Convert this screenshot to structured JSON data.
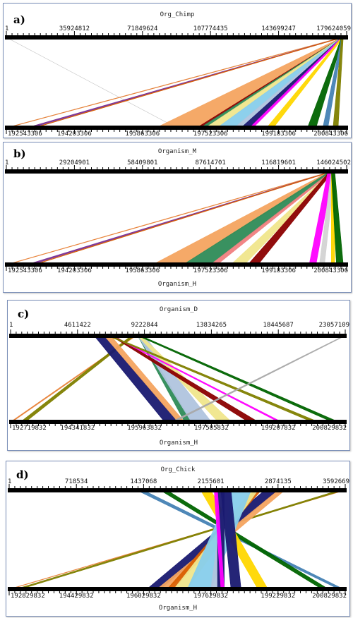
{
  "panels": [
    {
      "id": "a",
      "letter": "a)",
      "top_organism": "Org_Chimp",
      "bottom_organism": "",
      "top_ticks": [
        "1",
        "35924812",
        "71849624",
        "107774435",
        "143699247",
        "179624059"
      ],
      "bottom_ticks": [
        "192543306",
        "194203306",
        "195863306",
        "197523306",
        "199183306",
        "200843306"
      ],
      "links": [
        {
          "color": "#c0c0c0",
          "t": [
            0.0,
            0.0
          ],
          "b": [
            0.5,
            0.5
          ]
        },
        {
          "color": "#c0c0c0",
          "t": [
            0.985,
            0.985
          ],
          "b": [
            0.0,
            0.0
          ]
        },
        {
          "color": "#e8833a",
          "t": [
            0.985,
            0.99
          ],
          "b": [
            0.0,
            0.005
          ]
        },
        {
          "color": "#7b3294",
          "t": [
            0.985,
            0.99
          ],
          "b": [
            0.06,
            0.075
          ]
        },
        {
          "color": "#d95f02",
          "t": [
            0.985,
            0.99
          ],
          "b": [
            0.08,
            0.085
          ]
        },
        {
          "color": "#f4a460",
          "t": [
            0.985,
            0.995
          ],
          "b": [
            0.44,
            0.56
          ]
        },
        {
          "color": "#8b0000",
          "t": [
            0.985,
            0.99
          ],
          "b": [
            0.56,
            0.57
          ]
        },
        {
          "color": "#2e8b57",
          "t": [
            0.985,
            0.99
          ],
          "b": [
            0.57,
            0.585
          ]
        },
        {
          "color": "#f0e68c",
          "t": [
            0.985,
            0.99
          ],
          "b": [
            0.585,
            0.62
          ]
        },
        {
          "color": "#87ceeb",
          "t": [
            0.985,
            0.99
          ],
          "b": [
            0.62,
            0.67
          ]
        },
        {
          "color": "#b0c4de",
          "t": [
            0.985,
            0.99
          ],
          "b": [
            0.67,
            0.69
          ]
        },
        {
          "color": "#191970",
          "t": [
            0.985,
            0.99
          ],
          "b": [
            0.69,
            0.715
          ]
        },
        {
          "color": "#ff00ff",
          "t": [
            0.985,
            0.99
          ],
          "b": [
            0.715,
            0.725
          ]
        },
        {
          "color": "#ffd700",
          "t": [
            0.985,
            0.99
          ],
          "b": [
            0.765,
            0.785
          ]
        },
        {
          "color": "#006400",
          "t": [
            0.985,
            0.99
          ],
          "b": [
            0.885,
            0.91
          ]
        },
        {
          "color": "#4682b4",
          "t": [
            0.985,
            0.99
          ],
          "b": [
            0.93,
            0.945
          ]
        },
        {
          "color": "#808000",
          "t": [
            0.985,
            0.99
          ],
          "b": [
            0.96,
            0.975
          ]
        }
      ]
    },
    {
      "id": "b",
      "letter": "b)",
      "top_organism": "Organism_M",
      "bottom_organism": "Organism_H",
      "top_ticks": [
        "1",
        "29204901",
        "58409801",
        "87614701",
        "116819601",
        "146024502"
      ],
      "bottom_ticks": [
        "192543306",
        "194203306",
        "195863306",
        "197523306",
        "199183306",
        "200843306"
      ],
      "links": [
        {
          "color": "#e8833a",
          "t": [
            0.955,
            0.96
          ],
          "b": [
            0.0,
            0.005
          ]
        },
        {
          "color": "#7b3294",
          "t": [
            0.955,
            0.96
          ],
          "b": [
            0.06,
            0.075
          ]
        },
        {
          "color": "#d95f02",
          "t": [
            0.955,
            0.96
          ],
          "b": [
            0.08,
            0.085
          ]
        },
        {
          "color": "#f4a460",
          "t": [
            0.95,
            0.96
          ],
          "b": [
            0.43,
            0.52
          ]
        },
        {
          "color": "#2e8b57",
          "t": [
            0.95,
            0.96
          ],
          "b": [
            0.52,
            0.6
          ]
        },
        {
          "color": "#f08080",
          "t": [
            0.955,
            0.96
          ],
          "b": [
            0.6,
            0.62
          ]
        },
        {
          "color": "#f0e68c",
          "t": [
            0.955,
            0.96
          ],
          "b": [
            0.66,
            0.7
          ]
        },
        {
          "color": "#8b0000",
          "t": [
            0.95,
            0.96
          ],
          "b": [
            0.71,
            0.74
          ]
        },
        {
          "color": "#ff00ff",
          "t": [
            0.945,
            0.96
          ],
          "b": [
            0.89,
            0.91
          ]
        },
        {
          "color": "#d3d3d3",
          "t": [
            0.955,
            0.965
          ],
          "b": [
            0.92,
            0.935
          ]
        },
        {
          "color": "#ffd700",
          "t": [
            0.955,
            0.965
          ],
          "b": [
            0.955,
            0.965
          ]
        },
        {
          "color": "#006400",
          "t": [
            0.955,
            0.965
          ],
          "b": [
            0.97,
            0.99
          ]
        }
      ]
    },
    {
      "id": "c",
      "letter": "c)",
      "top_organism": "Organism_D",
      "bottom_organism": "Organism_H",
      "top_ticks": [
        "1",
        "4611422",
        "9222844",
        "13834265",
        "18445687",
        "23057109"
      ],
      "bottom_ticks": [
        "192719832",
        "194341832",
        "195963832",
        "197585832",
        "199207832",
        "200829832"
      ],
      "links": [
        {
          "color": "#e8833a",
          "t": [
            0.37,
            0.375
          ],
          "b": [
            0.0,
            0.005
          ]
        },
        {
          "color": "#808000",
          "t": [
            0.36,
            0.37
          ],
          "b": [
            0.03,
            0.045
          ]
        },
        {
          "color": "#191970",
          "t": [
            0.25,
            0.28
          ],
          "b": [
            0.46,
            0.5
          ]
        },
        {
          "color": "#f4a460",
          "t": [
            0.28,
            0.3
          ],
          "b": [
            0.5,
            0.52
          ]
        },
        {
          "color": "#2e8b57",
          "t": [
            0.38,
            0.39
          ],
          "b": [
            0.52,
            0.54
          ]
        },
        {
          "color": "#b0c4de",
          "t": [
            0.38,
            0.4
          ],
          "b": [
            0.54,
            0.6
          ]
        },
        {
          "color": "#f0e68c",
          "t": [
            0.38,
            0.39
          ],
          "b": [
            0.62,
            0.66
          ]
        },
        {
          "color": "#8b0000",
          "t": [
            0.3,
            0.31
          ],
          "b": [
            0.71,
            0.74
          ]
        },
        {
          "color": "#ff00ff",
          "t": [
            0.3,
            0.305
          ],
          "b": [
            0.8,
            0.81
          ]
        },
        {
          "color": "#808000",
          "t": [
            0.29,
            0.3
          ],
          "b": [
            0.9,
            0.92
          ]
        },
        {
          "color": "#006400",
          "t": [
            0.38,
            0.39
          ],
          "b": [
            0.96,
            0.98
          ]
        },
        {
          "color": "#a9a9a9",
          "t": [
            0.995,
            1.0
          ],
          "b": [
            0.48,
            0.49
          ]
        }
      ]
    },
    {
      "id": "d",
      "letter": "d)",
      "top_organism": "Org_Chick",
      "bottom_organism": "Organism_H",
      "top_ticks": [
        "1",
        "718534",
        "1437068",
        "2155601",
        "2874135",
        "3592669"
      ],
      "bottom_ticks": [
        "192829832",
        "194429832",
        "196029832",
        "197629832",
        "199229832",
        "200829832"
      ],
      "links": [
        {
          "color": "#e8833a",
          "t": [
            0.995,
            1.0
          ],
          "b": [
            0.0,
            0.005
          ]
        },
        {
          "color": "#808000",
          "t": [
            0.98,
            0.995
          ],
          "b": [
            0.02,
            0.035
          ]
        },
        {
          "color": "#4682b4",
          "t": [
            0.38,
            0.4
          ],
          "b": [
            0.98,
            0.995
          ]
        },
        {
          "color": "#006400",
          "t": [
            0.45,
            0.47
          ],
          "b": [
            0.93,
            0.95
          ]
        },
        {
          "color": "#ffd700",
          "t": [
            0.57,
            0.6
          ],
          "b": [
            0.74,
            0.77
          ]
        },
        {
          "color": "#191970",
          "t": [
            0.76,
            0.8
          ],
          "b": [
            0.41,
            0.45
          ]
        },
        {
          "color": "#f4a460",
          "t": [
            0.8,
            0.82
          ],
          "b": [
            0.44,
            0.47
          ]
        },
        {
          "color": "#d95f02",
          "t": [
            0.73,
            0.75
          ],
          "b": [
            0.47,
            0.49
          ]
        },
        {
          "color": "#f0e68c",
          "t": [
            0.72,
            0.74
          ],
          "b": [
            0.49,
            0.53
          ]
        },
        {
          "color": "#87ceeb",
          "t": [
            0.66,
            0.72
          ],
          "b": [
            0.53,
            0.6
          ]
        },
        {
          "color": "#b0c4de",
          "t": [
            0.64,
            0.66
          ],
          "b": [
            0.6,
            0.62
          ]
        },
        {
          "color": "#191970",
          "t": [
            0.62,
            0.64
          ],
          "b": [
            0.62,
            0.64
          ]
        },
        {
          "color": "#ff00ff",
          "t": [
            0.61,
            0.62
          ],
          "b": [
            0.63,
            0.64
          ]
        },
        {
          "color": "#191970",
          "t": [
            0.63,
            0.66
          ],
          "b": [
            0.66,
            0.69
          ]
        }
      ]
    }
  ]
}
